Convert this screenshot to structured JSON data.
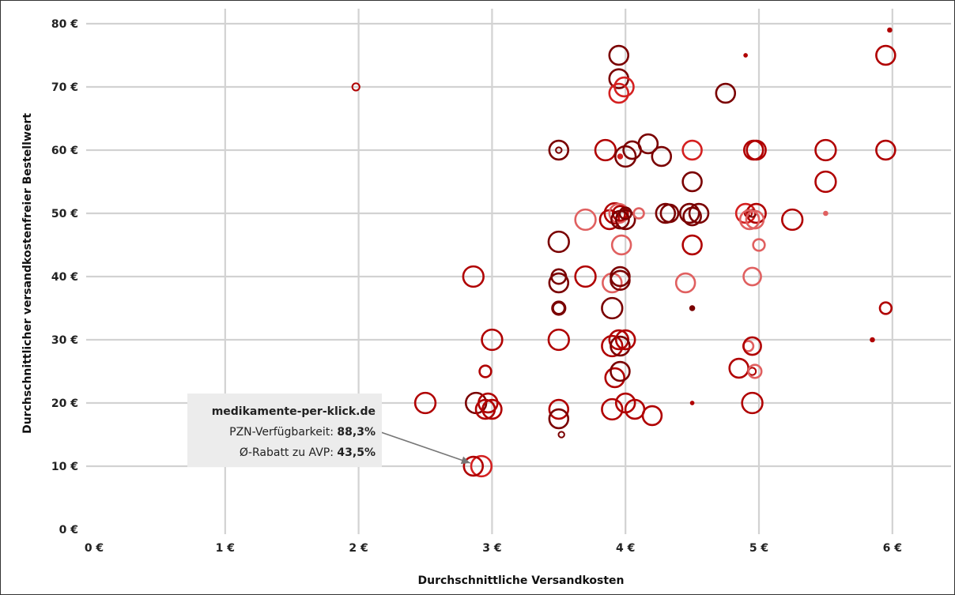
{
  "chart_data": {
    "type": "scatter",
    "xlabel": "Durchschnittliche Versandkosten",
    "ylabel": "Durchschnittlicher versandkostenfreier Bestellwert",
    "xlim": [
      0,
      6.3
    ],
    "ylim": [
      0,
      80
    ],
    "x_ticks": [
      "0 €",
      "1 €",
      "2 €",
      "3 €",
      "4 €",
      "5 €",
      "6 €"
    ],
    "y_ticks": [
      "0 €",
      "10 €",
      "20 €",
      "30 €",
      "40 €",
      "50 €",
      "60 €",
      "70 €",
      "80 €"
    ],
    "grid": true,
    "colors": {
      "dark": "#7a0000",
      "mid": "#b00000",
      "red": "#d42020",
      "light": "#e06060"
    },
    "points": [
      {
        "x": 1.98,
        "y": 70,
        "s": 5,
        "c": "mid"
      },
      {
        "x": 2.5,
        "y": 20,
        "s": 14,
        "c": "mid"
      },
      {
        "x": 2.86,
        "y": 40,
        "s": 14,
        "c": "mid"
      },
      {
        "x": 2.88,
        "y": 20,
        "s": 14,
        "c": "dark"
      },
      {
        "x": 2.92,
        "y": 10,
        "s": 14,
        "c": "red"
      },
      {
        "x": 2.86,
        "y": 10,
        "s": 13,
        "c": "mid"
      },
      {
        "x": 2.95,
        "y": 25,
        "s": 8,
        "c": "mid"
      },
      {
        "x": 2.97,
        "y": 20,
        "s": 13,
        "c": "mid"
      },
      {
        "x": 2.95,
        "y": 19,
        "s": 13,
        "c": "mid"
      },
      {
        "x": 3.0,
        "y": 19,
        "s": 13,
        "c": "mid"
      },
      {
        "x": 3.0,
        "y": 30,
        "s": 14,
        "c": "mid"
      },
      {
        "x": 3.5,
        "y": 60,
        "s": 13,
        "c": "dark"
      },
      {
        "x": 3.5,
        "y": 60,
        "s": 4,
        "c": "dark"
      },
      {
        "x": 3.5,
        "y": 45.5,
        "s": 14,
        "c": "dark"
      },
      {
        "x": 3.5,
        "y": 40,
        "s": 10,
        "c": "dark"
      },
      {
        "x": 3.5,
        "y": 39,
        "s": 13,
        "c": "dark"
      },
      {
        "x": 3.5,
        "y": 35,
        "s": 9,
        "c": "dark"
      },
      {
        "x": 3.5,
        "y": 35,
        "s": 8,
        "c": "dark"
      },
      {
        "x": 3.5,
        "y": 30,
        "s": 14,
        "c": "mid"
      },
      {
        "x": 3.5,
        "y": 19,
        "s": 13,
        "c": "mid"
      },
      {
        "x": 3.5,
        "y": 17.5,
        "s": 13,
        "c": "dark"
      },
      {
        "x": 3.52,
        "y": 15,
        "s": 4,
        "c": "dark"
      },
      {
        "x": 3.7,
        "y": 49,
        "s": 14,
        "c": "light"
      },
      {
        "x": 3.7,
        "y": 40,
        "s": 14,
        "c": "mid"
      },
      {
        "x": 3.85,
        "y": 60,
        "s": 14,
        "c": "mid"
      },
      {
        "x": 3.92,
        "y": 50,
        "s": 14,
        "c": "mid"
      },
      {
        "x": 3.88,
        "y": 49,
        "s": 13,
        "c": "mid"
      },
      {
        "x": 3.95,
        "y": 50,
        "s": 13,
        "c": "light"
      },
      {
        "x": 3.9,
        "y": 39,
        "s": 13,
        "c": "light"
      },
      {
        "x": 3.9,
        "y": 35,
        "s": 14,
        "c": "dark"
      },
      {
        "x": 3.9,
        "y": 29,
        "s": 14,
        "c": "mid"
      },
      {
        "x": 3.92,
        "y": 24,
        "s": 13,
        "c": "mid"
      },
      {
        "x": 3.9,
        "y": 19,
        "s": 14,
        "c": "mid"
      },
      {
        "x": 3.95,
        "y": 75,
        "s": 13,
        "c": "dark"
      },
      {
        "x": 3.95,
        "y": 71.3,
        "s": 13,
        "c": "dark"
      },
      {
        "x": 3.95,
        "y": 69,
        "s": 13,
        "c": "red"
      },
      {
        "x": 3.99,
        "y": 70,
        "s": 13,
        "c": "red"
      },
      {
        "x": 3.96,
        "y": 59,
        "s": 3,
        "c": "red"
      },
      {
        "x": 4.0,
        "y": 59,
        "s": 14,
        "c": "dark"
      },
      {
        "x": 4.05,
        "y": 60,
        "s": 12,
        "c": "dark"
      },
      {
        "x": 3.96,
        "y": 50,
        "s": 10,
        "c": "mid"
      },
      {
        "x": 3.96,
        "y": 49,
        "s": 12,
        "c": "dark"
      },
      {
        "x": 4.0,
        "y": 50,
        "s": 8,
        "c": "dark"
      },
      {
        "x": 4.0,
        "y": 49,
        "s": 13,
        "c": "dark"
      },
      {
        "x": 4.1,
        "y": 50,
        "s": 7,
        "c": "light"
      },
      {
        "x": 3.97,
        "y": 45,
        "s": 13,
        "c": "light"
      },
      {
        "x": 3.96,
        "y": 40,
        "s": 13,
        "c": "dark"
      },
      {
        "x": 3.96,
        "y": 39.4,
        "s": 13,
        "c": "dark"
      },
      {
        "x": 3.95,
        "y": 30,
        "s": 13,
        "c": "mid"
      },
      {
        "x": 3.96,
        "y": 29,
        "s": 13,
        "c": "dark"
      },
      {
        "x": 4.0,
        "y": 30,
        "s": 13,
        "c": "mid"
      },
      {
        "x": 3.96,
        "y": 25,
        "s": 13,
        "c": "dark"
      },
      {
        "x": 4.0,
        "y": 20,
        "s": 13,
        "c": "mid"
      },
      {
        "x": 4.07,
        "y": 19,
        "s": 13,
        "c": "mid"
      },
      {
        "x": 4.17,
        "y": 61,
        "s": 13,
        "c": "dark"
      },
      {
        "x": 4.2,
        "y": 18,
        "s": 13,
        "c": "mid"
      },
      {
        "x": 4.27,
        "y": 59,
        "s": 13,
        "c": "dark"
      },
      {
        "x": 4.3,
        "y": 50,
        "s": 13,
        "c": "dark"
      },
      {
        "x": 4.33,
        "y": 50,
        "s": 12,
        "c": "dark"
      },
      {
        "x": 4.45,
        "y": 39,
        "s": 13,
        "c": "light"
      },
      {
        "x": 4.5,
        "y": 60,
        "s": 13,
        "c": "red"
      },
      {
        "x": 4.5,
        "y": 55,
        "s": 13,
        "c": "dark"
      },
      {
        "x": 4.48,
        "y": 50,
        "s": 13,
        "c": "dark"
      },
      {
        "x": 4.5,
        "y": 49.5,
        "s": 12,
        "c": "dark"
      },
      {
        "x": 4.55,
        "y": 50,
        "s": 13,
        "c": "dark"
      },
      {
        "x": 4.5,
        "y": 45,
        "s": 13,
        "c": "mid"
      },
      {
        "x": 4.5,
        "y": 35,
        "s": 3,
        "c": "dark"
      },
      {
        "x": 4.5,
        "y": 20,
        "s": 2,
        "c": "mid"
      },
      {
        "x": 4.75,
        "y": 69,
        "s": 13,
        "c": "dark"
      },
      {
        "x": 4.85,
        "y": 25.5,
        "s": 13,
        "c": "mid"
      },
      {
        "x": 4.9,
        "y": 75,
        "s": 2,
        "c": "mid"
      },
      {
        "x": 4.9,
        "y": 50,
        "s": 13,
        "c": "red"
      },
      {
        "x": 4.92,
        "y": 50,
        "s": 5,
        "c": "mid"
      },
      {
        "x": 4.95,
        "y": 50,
        "s": 5,
        "c": "dark"
      },
      {
        "x": 4.98,
        "y": 50,
        "s": 13,
        "c": "mid"
      },
      {
        "x": 4.93,
        "y": 49,
        "s": 13,
        "c": "light"
      },
      {
        "x": 4.97,
        "y": 49,
        "s": 12,
        "c": "light"
      },
      {
        "x": 4.96,
        "y": 60,
        "s": 13,
        "c": "mid"
      },
      {
        "x": 4.98,
        "y": 60,
        "s": 13,
        "c": "mid"
      },
      {
        "x": 5.0,
        "y": 45,
        "s": 8,
        "c": "light"
      },
      {
        "x": 4.95,
        "y": 40,
        "s": 12,
        "c": "light"
      },
      {
        "x": 4.92,
        "y": 29,
        "s": 7,
        "c": "light"
      },
      {
        "x": 4.95,
        "y": 29,
        "s": 12,
        "c": "mid"
      },
      {
        "x": 4.95,
        "y": 25,
        "s": 5,
        "c": "mid"
      },
      {
        "x": 4.97,
        "y": 25,
        "s": 9,
        "c": "light"
      },
      {
        "x": 4.95,
        "y": 20,
        "s": 14,
        "c": "mid"
      },
      {
        "x": 5.25,
        "y": 49,
        "s": 14,
        "c": "mid"
      },
      {
        "x": 5.5,
        "y": 60,
        "s": 14,
        "c": "mid"
      },
      {
        "x": 5.5,
        "y": 55,
        "s": 14,
        "c": "mid"
      },
      {
        "x": 5.5,
        "y": 50,
        "s": 2.5,
        "c": "light"
      },
      {
        "x": 5.85,
        "y": 30,
        "s": 2.5,
        "c": "mid"
      },
      {
        "x": 5.95,
        "y": 75,
        "s": 13,
        "c": "mid"
      },
      {
        "x": 5.95,
        "y": 60,
        "s": 13,
        "c": "mid"
      },
      {
        "x": 5.95,
        "y": 35,
        "s": 8,
        "c": "mid"
      },
      {
        "x": 5.98,
        "y": 79,
        "s": 2.5,
        "c": "mid"
      }
    ],
    "annotation": {
      "name": "medikamente-per-klick.de",
      "line1_label": "PZN-Verfügbarkeit: ",
      "line1_value": "88,3%",
      "line2_label": "Ø-Rabatt zu AVP: ",
      "line2_value": "43,5%",
      "target": {
        "x": 2.89,
        "y": 10
      }
    }
  }
}
